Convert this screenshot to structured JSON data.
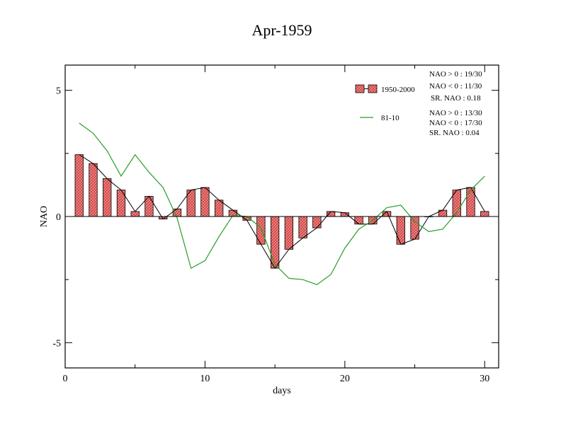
{
  "chart_data": {
    "type": "bar",
    "title": "Apr-1959",
    "xlabel": "days",
    "ylabel": "NAO",
    "xlim": [
      0,
      31
    ],
    "ylim": [
      -6,
      6
    ],
    "x_ticks": [
      0,
      10,
      20,
      30
    ],
    "x_tick_labels": [
      "0",
      "10",
      "20",
      "30"
    ],
    "y_ticks": [
      5,
      0,
      -5
    ],
    "y_tick_labels": [
      "5",
      "0",
      "-5"
    ],
    "grid": false,
    "legend_position": "top-right",
    "bar_color": "#f08080",
    "line_color": "#2a9d2a",
    "x": [
      1,
      2,
      3,
      4,
      5,
      6,
      7,
      8,
      9,
      10,
      11,
      12,
      13,
      14,
      15,
      16,
      17,
      18,
      19,
      20,
      21,
      22,
      23,
      24,
      25,
      26,
      27,
      28,
      29,
      30
    ],
    "series": [
      {
        "name": "1950-2000",
        "kind": "bar",
        "values": [
          2.45,
          2.1,
          1.5,
          1.05,
          0.2,
          0.8,
          -0.1,
          0.3,
          1.05,
          1.15,
          0.65,
          0.25,
          -0.15,
          -1.1,
          -2.05,
          -1.3,
          -0.85,
          -0.45,
          0.2,
          0.15,
          -0.3,
          -0.3,
          0.2,
          -1.1,
          -0.9,
          0.0,
          0.25,
          1.05,
          1.15,
          0.2
        ]
      },
      {
        "name": "81-10",
        "kind": "line",
        "values": [
          3.7,
          3.3,
          2.6,
          1.6,
          2.45,
          1.75,
          1.15,
          -0.05,
          -2.05,
          -1.75,
          -0.8,
          0.05,
          0.0,
          -0.45,
          -1.9,
          -2.45,
          -2.5,
          -2.7,
          -2.3,
          -1.25,
          -0.5,
          -0.15,
          0.35,
          0.45,
          -0.2,
          -0.6,
          -0.5,
          0.15,
          1.05,
          1.6
        ]
      }
    ],
    "stats_1950_2000": [
      "NAO > 0 :  19/30",
      "NAO < 0 :  11/30",
      "SR. NAO :  0.18"
    ],
    "stats_81_10": [
      "NAO > 0 :  13/30",
      "NAO < 0 :  17/30",
      "SR. NAO :  0.04"
    ]
  }
}
